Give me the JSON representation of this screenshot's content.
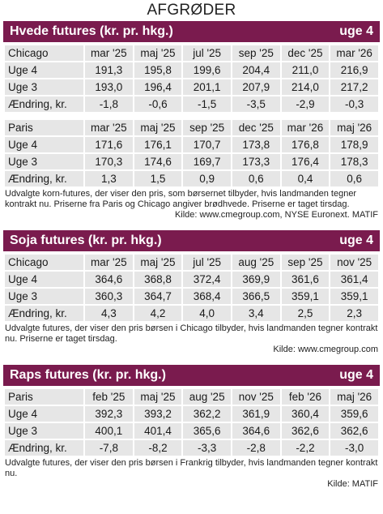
{
  "page_title": "AFGRØDER",
  "sections": [
    {
      "title": "Hvede futures (kr. pr. hkg.)",
      "week": "uge 4",
      "tables": [
        {
          "market": "Chicago",
          "months": [
            "mar '25",
            "maj '25",
            "jul '25",
            "sep '25",
            "dec '25",
            "mar '26"
          ],
          "rows": [
            {
              "label": "Uge 4",
              "values": [
                "191,3",
                "195,8",
                "199,6",
                "204,4",
                "211,0",
                "216,9"
              ]
            },
            {
              "label": "Uge 3",
              "values": [
                "193,0",
                "196,4",
                "201,1",
                "207,9",
                "214,0",
                "217,2"
              ]
            },
            {
              "label": "Ændring, kr.",
              "values": [
                "-1,8",
                "-0,6",
                "-1,5",
                "-3,5",
                "-2,9",
                "-0,3"
              ]
            }
          ]
        },
        {
          "market": "Paris",
          "months": [
            "mar '25",
            "maj '25",
            "sep '25",
            "dec '25",
            "mar '26",
            "maj '26"
          ],
          "rows": [
            {
              "label": "Uge 4",
              "values": [
                "171,6",
                "176,1",
                "170,7",
                "173,8",
                "176,8",
                "178,9"
              ]
            },
            {
              "label": "Uge 3",
              "values": [
                "170,3",
                "174,6",
                "169,7",
                "173,3",
                "176,4",
                "178,3"
              ]
            },
            {
              "label": "Ændring, kr.",
              "values": [
                "1,3",
                "1,5",
                "0,9",
                "0,6",
                "0,4",
                "0,6"
              ]
            }
          ]
        }
      ],
      "note": "Udvalgte korn-futures, der viser den pris, som børsernet tilbyder, hvis landmanden tegner kontrakt nu. Priserne fra Paris og Chicago angiver brødhvede. Priserne er taget tirsdag.",
      "source": "Kilde: www.cmegroup.com, NYSE Euronext. MATIF"
    },
    {
      "title": "Soja futures (kr. pr. hkg.)",
      "week": "uge 4",
      "tables": [
        {
          "market": "Chicago",
          "months": [
            "mar '25",
            "maj '25",
            "jul '25",
            "aug '25",
            "sep '25",
            "nov '25"
          ],
          "rows": [
            {
              "label": "Uge 4",
              "values": [
                "364,6",
                "368,8",
                "372,4",
                "369,9",
                "361,6",
                "361,4"
              ]
            },
            {
              "label": "Uge 3",
              "values": [
                "360,3",
                "364,7",
                "368,4",
                "366,5",
                "359,1",
                "359,1"
              ]
            },
            {
              "label": "Ændring, kr.",
              "values": [
                "4,3",
                "4,2",
                "4,0",
                "3,4",
                "2,5",
                "2,3"
              ]
            }
          ]
        }
      ],
      "note": "Udvalgte futures, der viser den pris børsen i Chicago tilbyder, hvis landmanden tegner kontrakt nu. Priserne er taget tirsdag.",
      "source": "Kilde: www.cmegroup.com"
    },
    {
      "title": "Raps futures (kr. pr. hkg.)",
      "week": "uge 4",
      "tables": [
        {
          "market": "Paris",
          "months": [
            "feb '25",
            "maj '25",
            "aug '25",
            "nov '25",
            "feb '26",
            "maj '26"
          ],
          "rows": [
            {
              "label": "Uge 4",
              "values": [
                "392,3",
                "393,2",
                "362,2",
                "361,9",
                "360,4",
                "359,6"
              ]
            },
            {
              "label": "Uge 3",
              "values": [
                "400,1",
                "401,4",
                "365,6",
                "364,6",
                "362,6",
                "362,6"
              ]
            },
            {
              "label": "Ændring, kr.",
              "values": [
                "-7,8",
                "-8,2",
                "-3,3",
                "-2,8",
                "-2,2",
                "-3,0"
              ]
            }
          ]
        }
      ],
      "note": "Udvalgte futures, der viser den pris børsen i Frankrig tilbyder, hvis landmanden tegner kontrakt nu.",
      "source": "Kilde: MATIF"
    }
  ]
}
